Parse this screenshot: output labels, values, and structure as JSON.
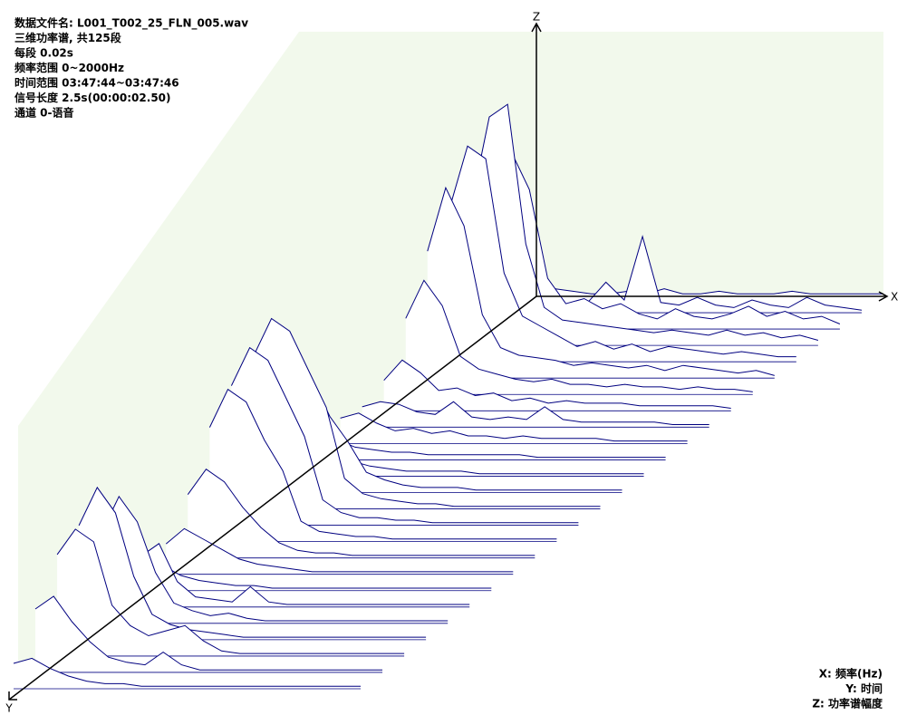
{
  "header": {
    "lines": [
      "数据文件名: L001_T002_25_FLN_005.wav",
      "三维功率谱, 共125段",
      "每段 0.02s",
      "频率范围 0~2000Hz",
      "时间范围 03:47:44~03:47:46",
      "信号长度 2.5s(00:00:02.50)",
      "通道 0-语音"
    ]
  },
  "axes": {
    "x": "X",
    "y": "Y",
    "z": "Z"
  },
  "legend": {
    "lines": [
      "X: 频率(Hz)",
      "Y: 时间",
      "Z: 功率谱幅度"
    ]
  },
  "chart_data": {
    "type": "waterfall",
    "zlim": [
      0,
      100
    ],
    "values": [
      [
        2,
        3,
        2,
        1,
        1,
        2,
        1,
        3,
        1,
        1,
        2,
        1,
        1,
        1,
        2,
        1,
        1,
        1,
        1,
        1
      ],
      [
        5,
        8,
        6,
        3,
        4,
        12,
        5,
        30,
        4,
        3,
        6,
        3,
        2,
        5,
        3,
        2,
        6,
        3,
        2,
        1
      ],
      [
        40,
        70,
        55,
        20,
        10,
        12,
        8,
        10,
        6,
        4,
        8,
        5,
        4,
        6,
        9,
        5,
        7,
        4,
        5,
        2
      ],
      [
        55,
        90,
        95,
        40,
        15,
        10,
        9,
        8,
        7,
        6,
        5,
        6,
        5,
        4,
        6,
        4,
        5,
        3,
        4,
        2
      ],
      [
        60,
        85,
        80,
        35,
        18,
        14,
        10,
        6,
        8,
        5,
        7,
        4,
        6,
        5,
        4,
        3,
        4,
        3,
        2,
        2
      ],
      [
        50,
        75,
        60,
        25,
        12,
        9,
        8,
        7,
        5,
        6,
        5,
        4,
        5,
        3,
        5,
        4,
        3,
        2,
        3,
        1
      ],
      [
        30,
        45,
        35,
        15,
        10,
        8,
        6,
        5,
        6,
        4,
        4,
        3,
        4,
        3,
        3,
        2,
        3,
        2,
        2,
        1
      ],
      [
        12,
        20,
        15,
        8,
        9,
        6,
        7,
        4,
        5,
        3,
        4,
        3,
        3,
        3,
        2,
        2,
        2,
        2,
        2,
        1
      ],
      [
        8,
        10,
        9,
        6,
        5,
        10,
        4,
        3,
        4,
        3,
        8,
        3,
        2,
        2,
        2,
        2,
        2,
        1,
        1,
        1
      ],
      [
        10,
        12,
        8,
        5,
        6,
        4,
        5,
        3,
        3,
        2,
        3,
        2,
        2,
        2,
        2,
        1,
        1,
        1,
        1,
        1
      ],
      [
        6,
        8,
        5,
        4,
        3,
        3,
        2,
        2,
        2,
        2,
        2,
        2,
        1,
        1,
        1,
        1,
        1,
        1,
        1,
        1
      ],
      [
        15,
        20,
        12,
        6,
        4,
        3,
        2,
        2,
        2,
        2,
        1,
        1,
        1,
        1,
        1,
        1,
        1,
        1,
        1,
        1
      ],
      [
        40,
        55,
        45,
        30,
        20,
        8,
        5,
        3,
        2,
        2,
        2,
        1,
        1,
        1,
        1,
        1,
        1,
        1,
        1,
        1
      ],
      [
        60,
        75,
        70,
        55,
        40,
        12,
        6,
        4,
        3,
        2,
        2,
        1,
        1,
        1,
        1,
        1,
        1,
        1,
        1,
        1
      ],
      [
        55,
        70,
        65,
        50,
        35,
        10,
        5,
        3,
        3,
        2,
        2,
        1,
        1,
        1,
        1,
        1,
        1,
        1,
        1,
        1
      ],
      [
        45,
        60,
        55,
        40,
        28,
        8,
        4,
        3,
        2,
        2,
        1,
        1,
        1,
        1,
        1,
        1,
        1,
        1,
        1,
        1
      ],
      [
        25,
        35,
        30,
        20,
        12,
        6,
        3,
        2,
        2,
        1,
        1,
        1,
        1,
        1,
        1,
        1,
        1,
        1,
        1,
        1
      ],
      [
        12,
        18,
        14,
        10,
        6,
        4,
        3,
        2,
        1,
        1,
        1,
        1,
        1,
        1,
        1,
        1,
        1,
        1,
        1,
        1
      ],
      [
        8,
        10,
        6,
        4,
        3,
        2,
        2,
        1,
        1,
        1,
        1,
        1,
        1,
        1,
        1,
        1,
        1,
        1,
        1,
        1
      ],
      [
        15,
        20,
        25,
        10,
        4,
        3,
        2,
        8,
        2,
        1,
        1,
        1,
        1,
        1,
        1,
        1,
        1,
        1,
        1,
        1
      ],
      [
        35,
        50,
        40,
        20,
        8,
        5,
        3,
        4,
        2,
        1,
        1,
        1,
        1,
        1,
        1,
        1,
        1,
        1,
        1,
        1
      ],
      [
        45,
        60,
        50,
        25,
        10,
        6,
        4,
        3,
        2,
        1,
        1,
        1,
        1,
        1,
        1,
        1,
        1,
        1,
        1,
        1
      ],
      [
        40,
        50,
        45,
        20,
        12,
        8,
        10,
        12,
        6,
        2,
        1,
        1,
        1,
        1,
        1,
        1,
        1,
        1,
        1,
        1
      ],
      [
        25,
        30,
        20,
        12,
        6,
        4,
        3,
        8,
        3,
        1,
        1,
        1,
        1,
        1,
        1,
        1,
        1,
        1,
        1,
        1
      ],
      [
        10,
        12,
        8,
        5,
        3,
        2,
        2,
        1,
        1,
        1,
        1,
        1,
        1,
        1,
        1,
        1,
        1,
        1,
        1,
        1
      ]
    ]
  }
}
